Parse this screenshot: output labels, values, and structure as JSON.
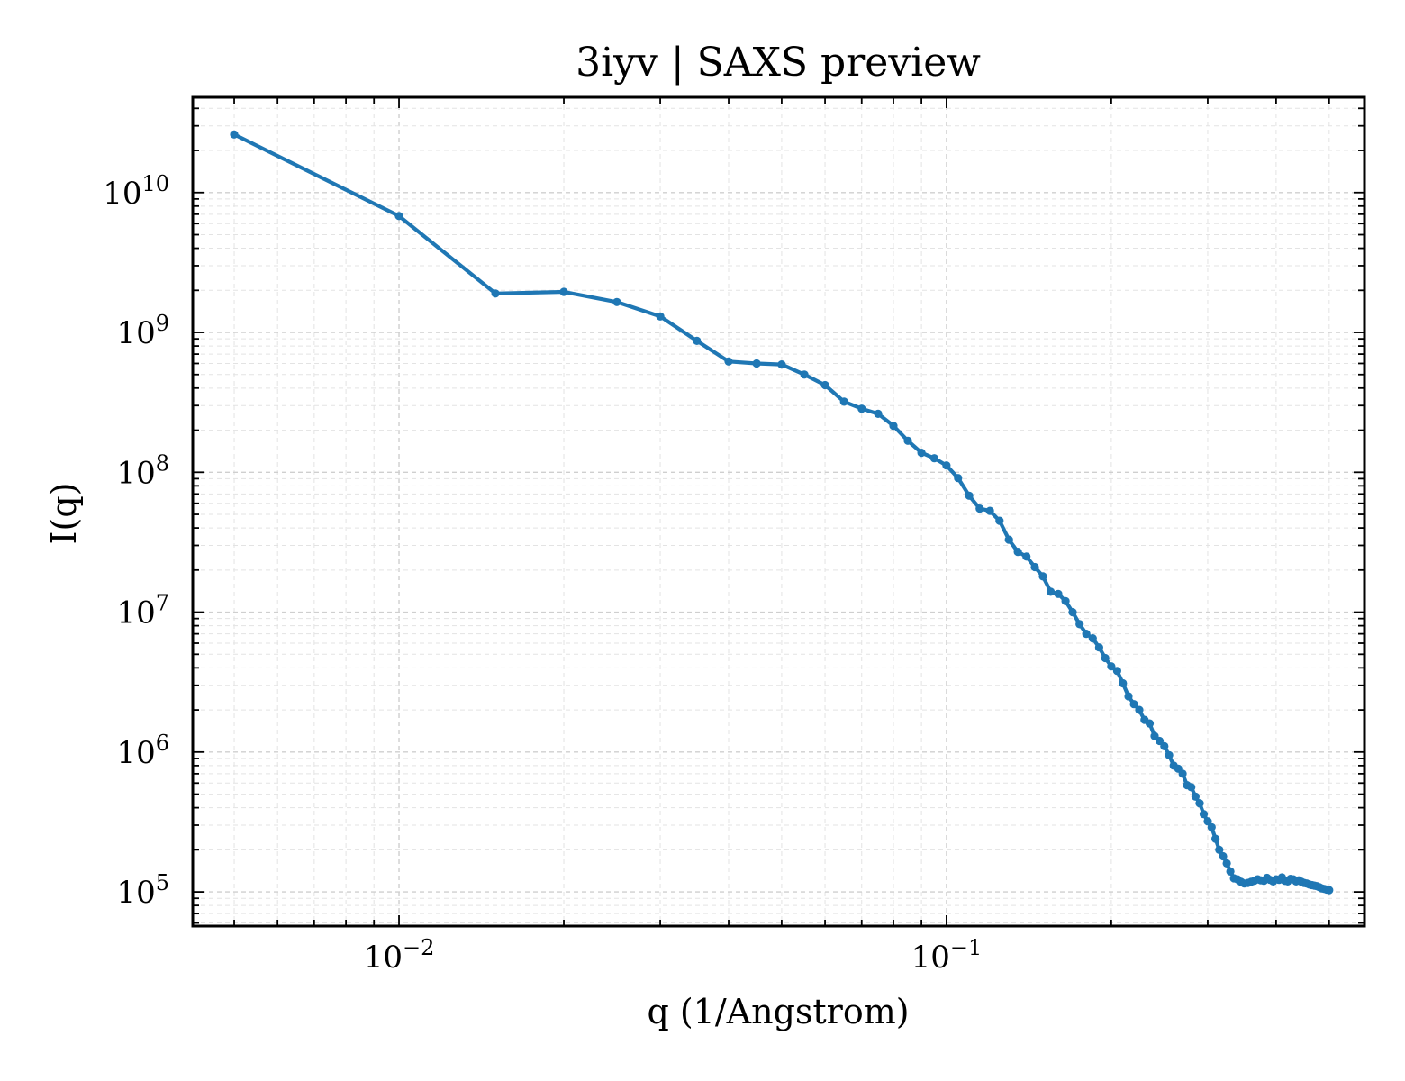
{
  "chart_data": {
    "type": "line",
    "title": "3iyv | SAXS preview",
    "xlabel": "q (1/Angstrom)",
    "ylabel": "I(q)",
    "xscale": "log",
    "yscale": "log",
    "xlim": [
      0.0042,
      0.58
    ],
    "ylim": [
      57000,
      48000000000
    ],
    "grid": true,
    "x_ticks": [
      {
        "value": 0.01,
        "base": "10",
        "exp": "−2"
      },
      {
        "value": 0.1,
        "base": "10",
        "exp": "−1"
      }
    ],
    "y_ticks": [
      {
        "value": 100000,
        "base": "10",
        "exp": "5"
      },
      {
        "value": 1000000,
        "base": "10",
        "exp": "6"
      },
      {
        "value": 10000000,
        "base": "10",
        "exp": "7"
      },
      {
        "value": 100000000,
        "base": "10",
        "exp": "8"
      },
      {
        "value": 1000000000,
        "base": "10",
        "exp": "9"
      },
      {
        "value": 10000000000,
        "base": "10",
        "exp": "10"
      }
    ],
    "color": "#1f77b4",
    "series": [
      {
        "x": [
          0.005,
          0.01,
          0.015,
          0.02,
          0.025,
          0.03,
          0.035,
          0.04,
          0.045,
          0.05,
          0.055,
          0.06,
          0.065,
          0.07,
          0.075,
          0.08,
          0.085,
          0.09,
          0.095,
          0.1,
          0.105,
          0.11,
          0.115,
          0.12,
          0.125,
          0.13,
          0.135,
          0.14,
          0.145,
          0.15,
          0.155,
          0.16,
          0.165,
          0.17,
          0.175,
          0.18,
          0.185,
          0.19,
          0.195,
          0.2,
          0.205,
          0.21,
          0.215,
          0.22,
          0.225,
          0.23,
          0.235,
          0.24,
          0.245,
          0.25,
          0.255,
          0.26,
          0.265,
          0.27,
          0.275,
          0.28,
          0.285,
          0.29,
          0.295,
          0.3,
          0.305,
          0.31,
          0.315,
          0.32,
          0.325,
          0.33,
          0.335,
          0.34,
          0.345,
          0.35,
          0.355,
          0.36,
          0.365,
          0.37,
          0.375,
          0.38,
          0.385,
          0.39,
          0.395,
          0.4,
          0.405,
          0.41,
          0.415,
          0.42,
          0.425,
          0.43,
          0.435,
          0.44,
          0.445,
          0.45,
          0.455,
          0.46,
          0.465,
          0.47,
          0.475,
          0.48,
          0.485,
          0.49,
          0.495,
          0.5
        ],
        "y": [
          26000000000,
          6800000000,
          1900000000,
          1950000000,
          1650000000,
          1300000000,
          870000000,
          620000000,
          600000000,
          590000000,
          500000000,
          420000000,
          320000000,
          285000000,
          262000000,
          215000000,
          168000000,
          138000000,
          126000000,
          112000000,
          91000000,
          68000000,
          55000000,
          53000000,
          45000000,
          33000000,
          27000000,
          25000000,
          21000000,
          18000000,
          14000000,
          13500000,
          12000000,
          10000000,
          8200000,
          7000000,
          6500000,
          5600000,
          4700000,
          4100000,
          3800000,
          3100000,
          2500000,
          2200000,
          2000000,
          1700000,
          1600000,
          1300000,
          1200000,
          1100000,
          950000,
          800000,
          760000,
          700000,
          580000,
          560000,
          480000,
          430000,
          360000,
          320000,
          290000,
          240000,
          200000,
          180000,
          160000,
          140000,
          125000,
          123000,
          118000,
          115000,
          116000,
          118000,
          120000,
          123000,
          121000,
          120000,
          126000,
          122000,
          119000,
          123000,
          122000,
          127000,
          120000,
          119000,
          124000,
          123000,
          119000,
          121000,
          118000,
          116000,
          115000,
          113000,
          112000,
          111000,
          110000,
          108000,
          106000,
          105000,
          104000,
          103000
        ]
      }
    ]
  }
}
